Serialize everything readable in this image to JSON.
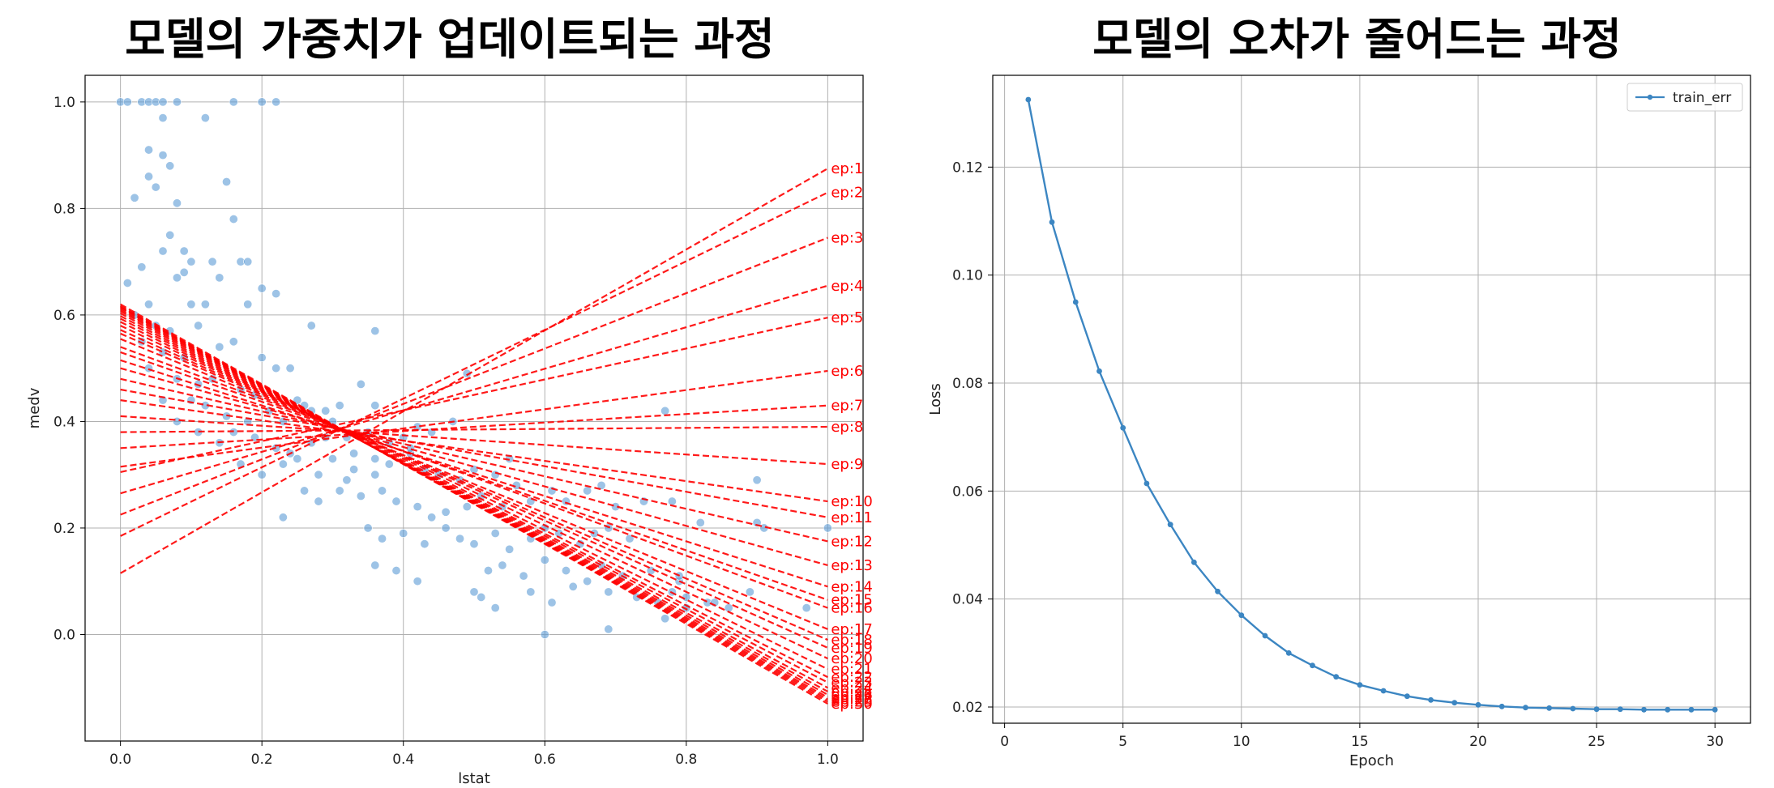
{
  "chart_data": [
    {
      "type": "scatter",
      "title": "모델의 가중치가 업데이트되는 과정",
      "xlabel": "lstat",
      "ylabel": "medv",
      "xlim": [
        -0.05,
        1.05
      ],
      "ylim": [
        -0.2,
        1.05
      ],
      "xticks": [
        0.0,
        0.2,
        0.4,
        0.6,
        0.8,
        1.0
      ],
      "yticks": [
        0.0,
        0.2,
        0.4,
        0.6,
        0.8,
        1.0
      ],
      "grid": true,
      "point_color": "#5b9bd5",
      "line_color": "#ff0000",
      "points": [
        [
          0.0,
          1.0
        ],
        [
          0.01,
          1.0
        ],
        [
          0.03,
          1.0
        ],
        [
          0.04,
          1.0
        ],
        [
          0.05,
          1.0
        ],
        [
          0.06,
          1.0
        ],
        [
          0.08,
          1.0
        ],
        [
          0.16,
          1.0
        ],
        [
          0.2,
          1.0
        ],
        [
          0.22,
          1.0
        ],
        [
          0.12,
          0.97
        ],
        [
          0.06,
          0.97
        ],
        [
          0.04,
          0.91
        ],
        [
          0.06,
          0.9
        ],
        [
          0.07,
          0.88
        ],
        [
          0.04,
          0.86
        ],
        [
          0.05,
          0.84
        ],
        [
          0.15,
          0.85
        ],
        [
          0.02,
          0.82
        ],
        [
          0.08,
          0.81
        ],
        [
          0.16,
          0.78
        ],
        [
          0.07,
          0.75
        ],
        [
          0.06,
          0.72
        ],
        [
          0.09,
          0.72
        ],
        [
          0.1,
          0.7
        ],
        [
          0.13,
          0.7
        ],
        [
          0.17,
          0.7
        ],
        [
          0.18,
          0.7
        ],
        [
          0.03,
          0.69
        ],
        [
          0.08,
          0.67
        ],
        [
          0.09,
          0.68
        ],
        [
          0.14,
          0.67
        ],
        [
          0.01,
          0.66
        ],
        [
          0.2,
          0.65
        ],
        [
          0.22,
          0.64
        ],
        [
          0.04,
          0.62
        ],
        [
          0.1,
          0.62
        ],
        [
          0.12,
          0.62
        ],
        [
          0.18,
          0.62
        ],
        [
          0.02,
          0.6
        ],
        [
          0.05,
          0.58
        ],
        [
          0.07,
          0.57
        ],
        [
          0.11,
          0.58
        ],
        [
          0.27,
          0.58
        ],
        [
          0.36,
          0.57
        ],
        [
          0.03,
          0.55
        ],
        [
          0.06,
          0.53
        ],
        [
          0.09,
          0.52
        ],
        [
          0.14,
          0.54
        ],
        [
          0.16,
          0.55
        ],
        [
          0.2,
          0.52
        ],
        [
          0.22,
          0.5
        ],
        [
          0.24,
          0.5
        ],
        [
          0.04,
          0.5
        ],
        [
          0.08,
          0.48
        ],
        [
          0.11,
          0.47
        ],
        [
          0.13,
          0.48
        ],
        [
          0.17,
          0.46
        ],
        [
          0.19,
          0.45
        ],
        [
          0.25,
          0.44
        ],
        [
          0.27,
          0.42
        ],
        [
          0.06,
          0.44
        ],
        [
          0.1,
          0.44
        ],
        [
          0.12,
          0.43
        ],
        [
          0.15,
          0.41
        ],
        [
          0.18,
          0.4
        ],
        [
          0.21,
          0.42
        ],
        [
          0.23,
          0.4
        ],
        [
          0.26,
          0.43
        ],
        [
          0.29,
          0.42
        ],
        [
          0.31,
          0.43
        ],
        [
          0.34,
          0.47
        ],
        [
          0.36,
          0.43
        ],
        [
          0.08,
          0.4
        ],
        [
          0.11,
          0.38
        ],
        [
          0.14,
          0.36
        ],
        [
          0.16,
          0.38
        ],
        [
          0.19,
          0.37
        ],
        [
          0.22,
          0.35
        ],
        [
          0.24,
          0.34
        ],
        [
          0.27,
          0.36
        ],
        [
          0.29,
          0.37
        ],
        [
          0.32,
          0.37
        ],
        [
          0.35,
          0.38
        ],
        [
          0.38,
          0.36
        ],
        [
          0.4,
          0.37
        ],
        [
          0.42,
          0.39
        ],
        [
          0.44,
          0.38
        ],
        [
          0.47,
          0.4
        ],
        [
          0.49,
          0.49
        ],
        [
          0.17,
          0.32
        ],
        [
          0.2,
          0.3
        ],
        [
          0.23,
          0.32
        ],
        [
          0.25,
          0.33
        ],
        [
          0.28,
          0.3
        ],
        [
          0.3,
          0.33
        ],
        [
          0.33,
          0.31
        ],
        [
          0.36,
          0.3
        ],
        [
          0.38,
          0.32
        ],
        [
          0.41,
          0.34
        ],
        [
          0.43,
          0.31
        ],
        [
          0.45,
          0.3
        ],
        [
          0.48,
          0.29
        ],
        [
          0.5,
          0.31
        ],
        [
          0.53,
          0.3
        ],
        [
          0.55,
          0.33
        ],
        [
          0.26,
          0.27
        ],
        [
          0.28,
          0.25
        ],
        [
          0.31,
          0.27
        ],
        [
          0.34,
          0.26
        ],
        [
          0.37,
          0.27
        ],
        [
          0.39,
          0.25
        ],
        [
          0.42,
          0.24
        ],
        [
          0.44,
          0.22
        ],
        [
          0.46,
          0.23
        ],
        [
          0.49,
          0.24
        ],
        [
          0.51,
          0.26
        ],
        [
          0.54,
          0.24
        ],
        [
          0.56,
          0.28
        ],
        [
          0.58,
          0.25
        ],
        [
          0.61,
          0.27
        ],
        [
          0.63,
          0.25
        ],
        [
          0.66,
          0.27
        ],
        [
          0.68,
          0.28
        ],
        [
          0.7,
          0.24
        ],
        [
          0.74,
          0.25
        ],
        [
          0.23,
          0.22
        ],
        [
          0.35,
          0.2
        ],
        [
          0.37,
          0.18
        ],
        [
          0.4,
          0.19
        ],
        [
          0.43,
          0.17
        ],
        [
          0.46,
          0.2
        ],
        [
          0.48,
          0.18
        ],
        [
          0.5,
          0.17
        ],
        [
          0.53,
          0.19
        ],
        [
          0.55,
          0.16
        ],
        [
          0.58,
          0.18
        ],
        [
          0.6,
          0.2
        ],
        [
          0.62,
          0.19
        ],
        [
          0.65,
          0.17
        ],
        [
          0.67,
          0.19
        ],
        [
          0.69,
          0.2
        ],
        [
          0.72,
          0.18
        ],
        [
          0.36,
          0.13
        ],
        [
          0.39,
          0.12
        ],
        [
          0.42,
          0.1
        ],
        [
          0.52,
          0.12
        ],
        [
          0.54,
          0.13
        ],
        [
          0.57,
          0.11
        ],
        [
          0.6,
          0.14
        ],
        [
          0.63,
          0.12
        ],
        [
          0.66,
          0.1
        ],
        [
          0.68,
          0.13
        ],
        [
          0.71,
          0.11
        ],
        [
          0.75,
          0.12
        ],
        [
          0.79,
          0.1
        ],
        [
          0.5,
          0.08
        ],
        [
          0.51,
          0.07
        ],
        [
          0.53,
          0.05
        ],
        [
          0.58,
          0.08
        ],
        [
          0.61,
          0.06
        ],
        [
          0.64,
          0.09
        ],
        [
          0.69,
          0.08
        ],
        [
          0.73,
          0.07
        ],
        [
          0.76,
          0.06
        ],
        [
          0.78,
          0.08
        ],
        [
          0.8,
          0.07
        ],
        [
          0.83,
          0.06
        ],
        [
          0.86,
          0.05
        ],
        [
          0.6,
          0.0
        ],
        [
          0.69,
          0.01
        ],
        [
          0.77,
          0.03
        ],
        [
          0.8,
          0.05
        ],
        [
          0.84,
          0.06
        ],
        [
          0.79,
          0.11
        ],
        [
          0.89,
          0.08
        ],
        [
          0.97,
          0.05
        ],
        [
          0.9,
          0.29
        ],
        [
          0.9,
          0.21
        ],
        [
          0.91,
          0.2
        ],
        [
          1.0,
          0.2
        ],
        [
          0.77,
          0.42
        ],
        [
          0.78,
          0.25
        ],
        [
          0.82,
          0.21
        ],
        [
          0.41,
          0.35
        ],
        [
          0.33,
          0.34
        ],
        [
          0.3,
          0.4
        ],
        [
          0.32,
          0.29
        ],
        [
          0.36,
          0.33
        ]
      ],
      "series": [
        {
          "name": "ep:1",
          "values": [
            0.115,
            0.875
          ]
        },
        {
          "name": "ep:2",
          "values": [
            0.185,
            0.83
          ]
        },
        {
          "name": "ep:3",
          "values": [
            0.225,
            0.745
          ]
        },
        {
          "name": "ep:4",
          "values": [
            0.265,
            0.655
          ]
        },
        {
          "name": "ep:5",
          "values": [
            0.305,
            0.595
          ]
        },
        {
          "name": "ep:6",
          "values": [
            0.315,
            0.495
          ]
        },
        {
          "name": "ep:7",
          "values": [
            0.35,
            0.43
          ]
        },
        {
          "name": "ep:8",
          "values": [
            0.38,
            0.39
          ]
        },
        {
          "name": "ep:9",
          "values": [
            0.41,
            0.32
          ]
        },
        {
          "name": "ep:10",
          "values": [
            0.44,
            0.25
          ]
        },
        {
          "name": "ep:11",
          "values": [
            0.46,
            0.22
          ]
        },
        {
          "name": "ep:12",
          "values": [
            0.48,
            0.175
          ]
        },
        {
          "name": "ep:13",
          "values": [
            0.5,
            0.13
          ]
        },
        {
          "name": "ep:14",
          "values": [
            0.515,
            0.09
          ]
        },
        {
          "name": "ep:15",
          "values": [
            0.53,
            0.065
          ]
        },
        {
          "name": "ep:16",
          "values": [
            0.54,
            0.05
          ]
        },
        {
          "name": "ep:17",
          "values": [
            0.555,
            0.01
          ]
        },
        {
          "name": "ep:18",
          "values": [
            0.565,
            -0.01
          ]
        },
        {
          "name": "ep:19",
          "values": [
            0.572,
            -0.025
          ]
        },
        {
          "name": "ep:20",
          "values": [
            0.58,
            -0.045
          ]
        },
        {
          "name": "ep:21",
          "values": [
            0.587,
            -0.065
          ]
        },
        {
          "name": "ep:22",
          "values": [
            0.593,
            -0.08
          ]
        },
        {
          "name": "ep:23",
          "values": [
            0.598,
            -0.09
          ]
        },
        {
          "name": "ep:24",
          "values": [
            0.603,
            -0.1
          ]
        },
        {
          "name": "ep:25",
          "values": [
            0.607,
            -0.107
          ]
        },
        {
          "name": "ep:26",
          "values": [
            0.61,
            -0.113
          ]
        },
        {
          "name": "ep:27",
          "values": [
            0.613,
            -0.118
          ]
        },
        {
          "name": "ep:28",
          "values": [
            0.615,
            -0.122
          ]
        },
        {
          "name": "ep:29",
          "values": [
            0.617,
            -0.126
          ]
        },
        {
          "name": "ep:30",
          "values": [
            0.62,
            -0.13
          ]
        }
      ]
    },
    {
      "type": "line",
      "title": "모델의 오차가 줄어드는 과정",
      "xlabel": "Epoch",
      "ylabel": "Loss",
      "xlim": [
        -0.5,
        31.5
      ],
      "ylim": [
        0.017,
        0.137
      ],
      "xticks": [
        0,
        5,
        10,
        15,
        20,
        25,
        30
      ],
      "yticks": [
        0.02,
        0.04,
        0.06,
        0.08,
        0.1,
        0.12
      ],
      "ytick_labels": [
        "0.02",
        "0.04",
        "0.06",
        "0.08",
        "0.10",
        "0.12"
      ],
      "grid": true,
      "legend_position": "top-right",
      "line_color": "#3c86c2",
      "x": [
        1,
        2,
        3,
        4,
        5,
        6,
        7,
        8,
        9,
        10,
        11,
        12,
        13,
        14,
        15,
        16,
        17,
        18,
        19,
        20,
        21,
        22,
        23,
        24,
        25,
        26,
        27,
        28,
        29,
        30
      ],
      "series": [
        {
          "name": "train_err",
          "values": [
            0.1325,
            0.1098,
            0.095,
            0.0822,
            0.0717,
            0.0614,
            0.0538,
            0.0468,
            0.0414,
            0.037,
            0.0332,
            0.03,
            0.0277,
            0.0256,
            0.0241,
            0.023,
            0.022,
            0.0213,
            0.0208,
            0.0204,
            0.0201,
            0.0199,
            0.0198,
            0.0197,
            0.0196,
            0.0196,
            0.0195,
            0.0195,
            0.0195,
            0.0195
          ]
        }
      ]
    }
  ]
}
